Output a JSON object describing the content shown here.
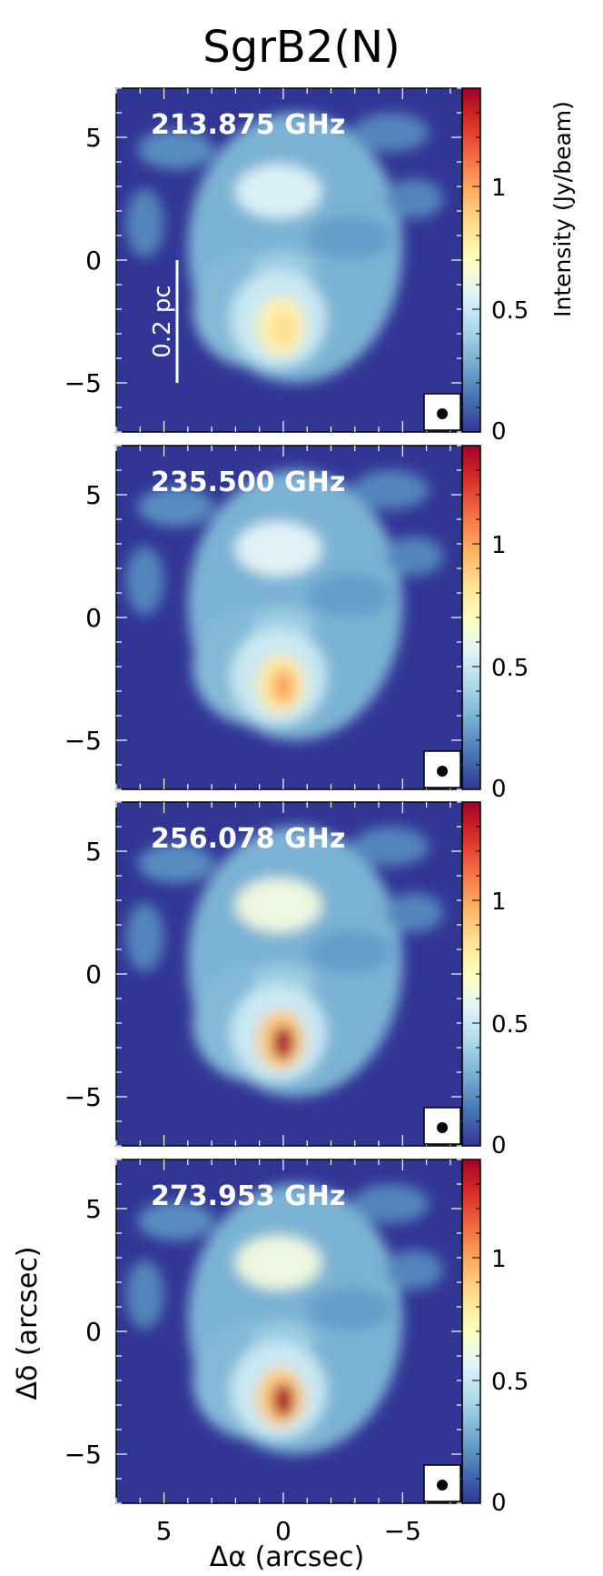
{
  "title": "SgrB2(N)",
  "xlabel": "Δα (arcsec)",
  "ylabel": "Δδ (arcsec)",
  "colorbar_label": "Intensity (Jy/beam)",
  "scalebar_label": "0.2 pc",
  "colormap": [
    "#313695",
    "#4575b4",
    "#74add1",
    "#abd9e9",
    "#e0f3f8",
    "#ffffbf",
    "#fee090",
    "#fdae61",
    "#f46d43",
    "#d73027",
    "#a50026"
  ],
  "chart_data": [
    {
      "type": "heatmap",
      "label": "213.875 GHz",
      "xlim": [
        7,
        -7.5
      ],
      "ylim": [
        -7,
        7
      ],
      "xticks": [
        5,
        0,
        -5
      ],
      "xtick_labels": [
        "5",
        "0",
        "−5"
      ],
      "yticks": [
        5,
        0,
        -5
      ],
      "ytick_labels": [
        "5",
        "0",
        "−5"
      ],
      "colorbar": {
        "range": [
          0,
          1.4
        ],
        "ticks": [
          0,
          0.5,
          1
        ],
        "tick_labels": [
          "0",
          "0.5",
          "1"
        ]
      },
      "peak": {
        "x": 0,
        "y": -2.8,
        "value": 0.85
      },
      "beam_marker": true,
      "scalebar": true
    },
    {
      "type": "heatmap",
      "label": "235.500 GHz",
      "xlim": [
        7,
        -7.5
      ],
      "ylim": [
        -7,
        7
      ],
      "xticks": [
        5,
        0,
        -5
      ],
      "xtick_labels": [
        "5",
        "0",
        "−5"
      ],
      "yticks": [
        5,
        0,
        -5
      ],
      "ytick_labels": [
        "5",
        "0",
        "−5"
      ],
      "colorbar": {
        "range": [
          0,
          1.4
        ],
        "ticks": [
          0,
          0.5,
          1
        ],
        "tick_labels": [
          "0",
          "0.5",
          "1"
        ]
      },
      "peak": {
        "x": 0,
        "y": -2.8,
        "value": 1.0
      },
      "beam_marker": true,
      "scalebar": false
    },
    {
      "type": "heatmap",
      "label": "256.078 GHz",
      "xlim": [
        7,
        -7.5
      ],
      "ylim": [
        -7,
        7
      ],
      "xticks": [
        5,
        0,
        -5
      ],
      "xtick_labels": [
        "5",
        "0",
        "−5"
      ],
      "yticks": [
        5,
        0,
        -5
      ],
      "ytick_labels": [
        "5",
        "0",
        "−5"
      ],
      "colorbar": {
        "range": [
          0,
          1.4
        ],
        "ticks": [
          0,
          0.5,
          1
        ],
        "tick_labels": [
          "0",
          "0.5",
          "1"
        ]
      },
      "peak": {
        "x": -0.1,
        "y": -2.8,
        "value": 1.4
      },
      "beam_marker": true,
      "scalebar": false
    },
    {
      "type": "heatmap",
      "label": "273.953 GHz",
      "xlim": [
        7,
        -7.5
      ],
      "ylim": [
        -7,
        7
      ],
      "xticks": [
        5,
        0,
        -5
      ],
      "xtick_labels": [
        "5",
        "0",
        "−5"
      ],
      "yticks": [
        5,
        0,
        -5
      ],
      "ytick_labels": [
        "5",
        "0",
        "−5"
      ],
      "colorbar": {
        "range": [
          0,
          1.4
        ],
        "ticks": [
          0,
          0.5,
          1
        ],
        "tick_labels": [
          "0",
          "0.5",
          "1"
        ]
      },
      "peak": {
        "x": -0.2,
        "y": -2.8,
        "value": 1.4
      },
      "beam_marker": true,
      "scalebar": false
    }
  ]
}
